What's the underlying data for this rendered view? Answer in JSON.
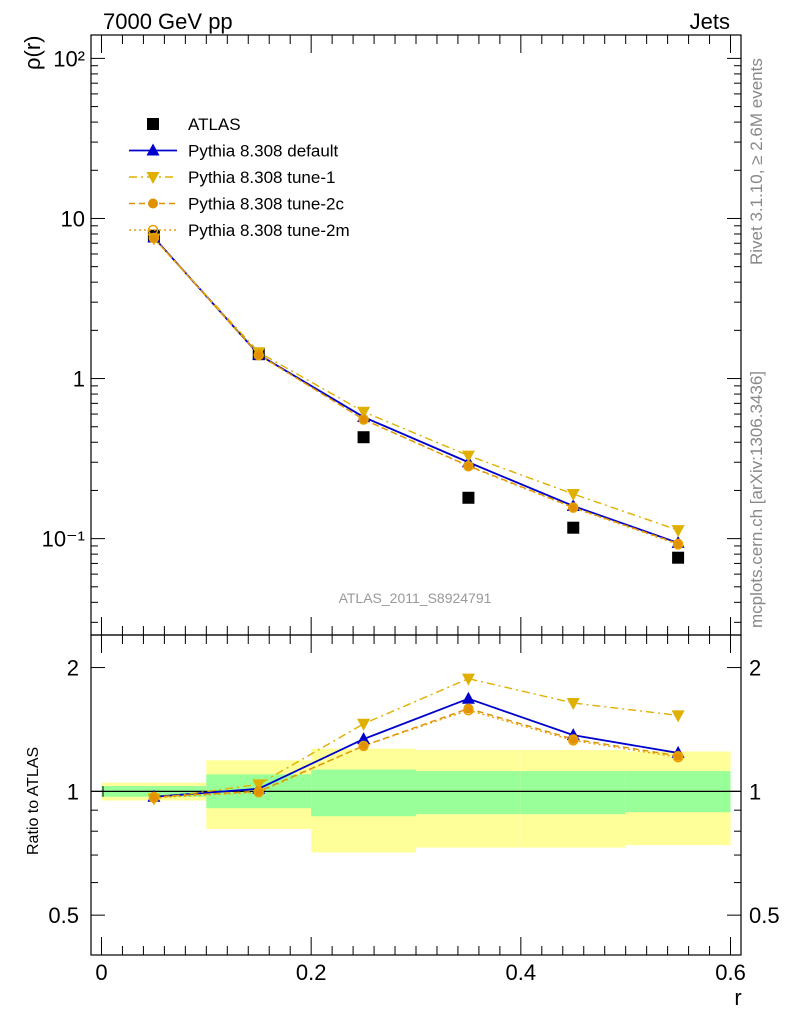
{
  "header": {
    "left_title": "7000 GeV pp",
    "right_title": "Jets"
  },
  "side_labels": {
    "rivet": "Rivet 3.1.10, ≥ 2.6M events",
    "mcplots": "mcplots.cern.ch [arXiv:1306.3436]"
  },
  "analysis_id": "ATLAS_2011_S8924791",
  "colors": {
    "data": "#000000",
    "default": "#0000cc",
    "tune1": "#e0b000",
    "tune2c": "#e09000",
    "tune2m": "#e8a000",
    "band_inner": "#99ff99",
    "band_outer": "#ffff99"
  },
  "chart_data": [
    {
      "type": "scatter",
      "ylabel": "ρ(r)",
      "yscale": "log",
      "ylim": [
        0.025,
        140
      ],
      "xlim": [
        -0.01,
        0.61
      ],
      "ytick_labels": [
        "10²",
        "10",
        "1",
        "10⁻¹"
      ],
      "legend_position": "top-left",
      "x": [
        0.05,
        0.15,
        0.25,
        0.35,
        0.45,
        0.55
      ],
      "series": [
        {
          "name": "ATLAS",
          "values": [
            7.8,
            1.42,
            0.43,
            0.18,
            0.117,
            0.076
          ],
          "marker": "square"
        },
        {
          "name": "Pythia 8.308 default",
          "values": [
            7.6,
            1.41,
            0.575,
            0.3,
            0.16,
            0.094
          ],
          "marker": "triangle-up",
          "line": "solid"
        },
        {
          "name": "Pythia 8.308 tune-1",
          "values": [
            7.5,
            1.46,
            0.62,
            0.33,
            0.19,
            0.113
          ],
          "marker": "triangle-down",
          "line": "dashdot"
        },
        {
          "name": "Pythia 8.308 tune-2c",
          "values": [
            7.55,
            1.41,
            0.555,
            0.285,
            0.157,
            0.093
          ],
          "marker": "circle",
          "line": "dashed"
        },
        {
          "name": "Pythia 8.308 tune-2m",
          "values": [
            7.55,
            1.4,
            0.555,
            0.283,
            0.156,
            0.092
          ],
          "marker": "circle-open",
          "line": "dotted"
        }
      ]
    },
    {
      "type": "line",
      "ylabel": "Ratio to ATLAS",
      "xlabel": "r",
      "yscale": "log",
      "ylim": [
        0.4,
        2.4
      ],
      "xlim": [
        -0.01,
        0.61
      ],
      "yticks": [
        0.5,
        1,
        2
      ],
      "ytick_labels": [
        "0.5",
        "1",
        "2"
      ],
      "xticks": [
        0,
        0.2,
        0.4,
        0.6
      ],
      "xtick_labels": [
        "0",
        "0.2",
        "0.4",
        "0.6"
      ],
      "x": [
        0.05,
        0.15,
        0.25,
        0.35,
        0.45,
        0.55
      ],
      "bands": {
        "edges": [
          0,
          0.1,
          0.2,
          0.3,
          0.4,
          0.5,
          0.6
        ],
        "inner_low": [
          0.97,
          0.91,
          0.87,
          0.88,
          0.88,
          0.89
        ],
        "inner_high": [
          1.03,
          1.1,
          1.13,
          1.12,
          1.12,
          1.12
        ],
        "outer_low": [
          0.95,
          0.81,
          0.71,
          0.73,
          0.73,
          0.74
        ],
        "outer_high": [
          1.05,
          1.19,
          1.27,
          1.26,
          1.26,
          1.25
        ]
      },
      "series": [
        {
          "name": "Pythia 8.308 default",
          "values": [
            0.97,
            1.015,
            1.34,
            1.68,
            1.37,
            1.24
          ]
        },
        {
          "name": "Pythia 8.308 tune-1",
          "values": [
            0.96,
            1.04,
            1.46,
            1.88,
            1.64,
            1.53
          ]
        },
        {
          "name": "Pythia 8.308 tune-2c",
          "values": [
            0.97,
            1.0,
            1.29,
            1.59,
            1.34,
            1.22
          ]
        },
        {
          "name": "Pythia 8.308 tune-2m",
          "values": [
            0.965,
            0.995,
            1.29,
            1.575,
            1.33,
            1.21
          ]
        }
      ]
    }
  ]
}
